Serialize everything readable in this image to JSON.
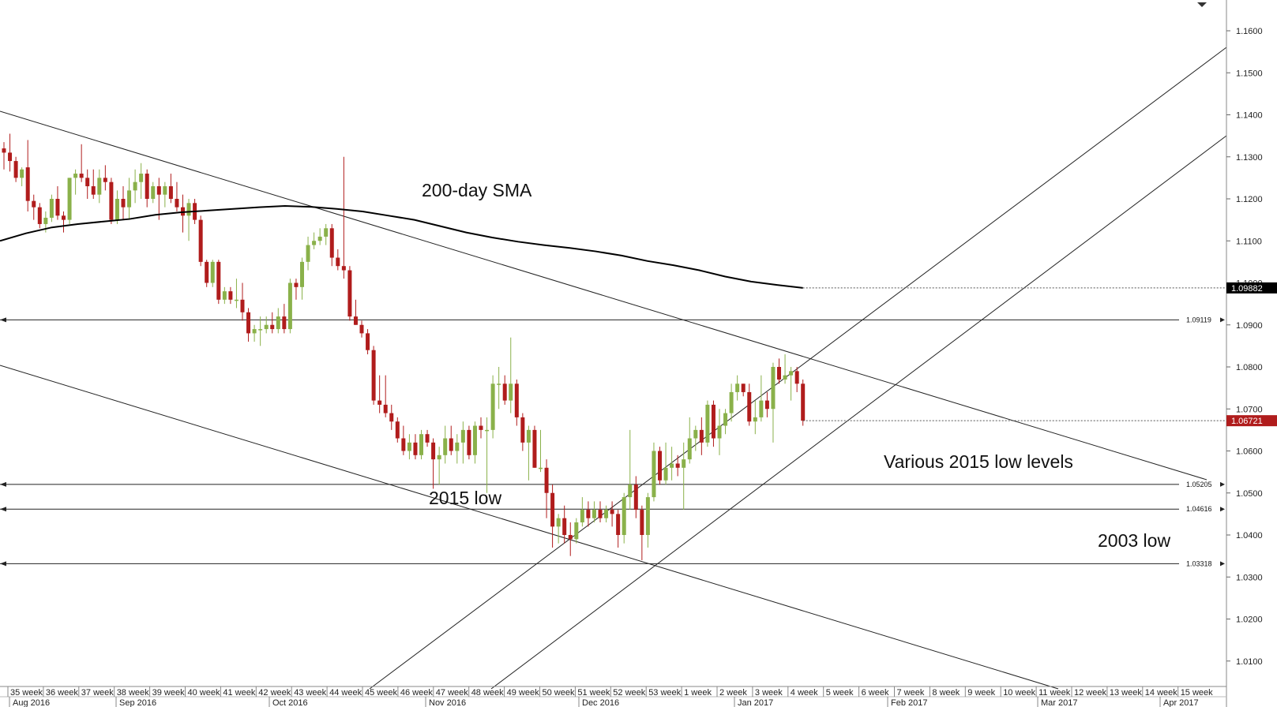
{
  "chart_data": {
    "type": "candlestick",
    "title": "",
    "ylim": [
      1.0,
      1.17
    ],
    "y_ticks": [
      "1.1600",
      "1.1500",
      "1.1400",
      "1.1300",
      "1.1200",
      "1.1100",
      "1.1000",
      "1.0900",
      "1.0800",
      "1.0700",
      "1.0600",
      "1.0500",
      "1.0400",
      "1.0300",
      "1.0200",
      "1.0100"
    ],
    "x_week_labels": [
      "35 week",
      "36 week",
      "37 week",
      "38 week",
      "39 week",
      "40 week",
      "41 week",
      "42 week",
      "43 week",
      "44 week",
      "45 week",
      "46 week",
      "47 week",
      "48 week",
      "49 week",
      "50 week",
      "51 week",
      "52 week",
      "53 week",
      "1 week",
      "2 week",
      "3 week",
      "4 week",
      "5 week",
      "6 week",
      "7 week",
      "8 week",
      "9 week",
      "10 week",
      "11 week",
      "12 week",
      "13 week",
      "14 week",
      "15 week"
    ],
    "x_month_labels": [
      "Aug 2016",
      "Sep 2016",
      "Oct 2016",
      "Nov 2016",
      "Dec 2016",
      "Jan 2017",
      "Feb 2017",
      "Mar 2017",
      "Apr 2017"
    ],
    "candles": [
      [
        1.132,
        1.1335,
        1.127,
        1.131
      ],
      [
        1.131,
        1.1355,
        1.1265,
        1.129
      ],
      [
        1.129,
        1.13,
        1.124,
        1.125
      ],
      [
        1.125,
        1.1275,
        1.123,
        1.127
      ],
      [
        1.1275,
        1.134,
        1.117,
        1.1195
      ],
      [
        1.1195,
        1.121,
        1.115,
        1.118
      ],
      [
        1.118,
        1.119,
        1.113,
        1.114
      ],
      [
        1.114,
        1.117,
        1.112,
        1.1155
      ],
      [
        1.1155,
        1.121,
        1.1145,
        1.12
      ],
      [
        1.12,
        1.123,
        1.115,
        1.116
      ],
      [
        1.116,
        1.117,
        1.112,
        1.115
      ],
      [
        1.115,
        1.125,
        1.114,
        1.125
      ],
      [
        1.125,
        1.127,
        1.121,
        1.126
      ],
      [
        1.126,
        1.133,
        1.124,
        1.125
      ],
      [
        1.125,
        1.127,
        1.12,
        1.123
      ],
      [
        1.123,
        1.127,
        1.12,
        1.121
      ],
      [
        1.121,
        1.127,
        1.119,
        1.125
      ],
      [
        1.125,
        1.128,
        1.122,
        1.124
      ],
      [
        1.124,
        1.125,
        1.114,
        1.115
      ],
      [
        1.115,
        1.122,
        1.114,
        1.12
      ],
      [
        1.12,
        1.123,
        1.115,
        1.118
      ],
      [
        1.118,
        1.125,
        1.115,
        1.122
      ],
      [
        1.122,
        1.127,
        1.119,
        1.124
      ],
      [
        1.124,
        1.1285,
        1.12,
        1.126
      ],
      [
        1.126,
        1.127,
        1.118,
        1.12
      ],
      [
        1.12,
        1.124,
        1.119,
        1.123
      ],
      [
        1.123,
        1.125,
        1.115,
        1.121
      ],
      [
        1.121,
        1.124,
        1.118,
        1.123
      ],
      [
        1.123,
        1.126,
        1.119,
        1.12
      ],
      [
        1.12,
        1.124,
        1.117,
        1.118
      ],
      [
        1.118,
        1.121,
        1.112,
        1.116
      ],
      [
        1.116,
        1.12,
        1.11,
        1.119
      ],
      [
        1.119,
        1.12,
        1.114,
        1.115
      ],
      [
        1.115,
        1.116,
        1.104,
        1.105
      ],
      [
        1.105,
        1.1055,
        1.099,
        1.1
      ],
      [
        1.1,
        1.1055,
        1.099,
        1.105
      ],
      [
        1.105,
        1.1055,
        1.095,
        1.096
      ],
      [
        1.096,
        1.099,
        1.095,
        1.098
      ],
      [
        1.098,
        1.099,
        1.095,
        1.096
      ],
      [
        1.096,
        1.101,
        1.094,
        1.096
      ],
      [
        1.096,
        1.1,
        1.091,
        1.093
      ],
      [
        1.093,
        1.094,
        1.086,
        1.088
      ],
      [
        1.088,
        1.09,
        1.086,
        1.089
      ],
      [
        1.089,
        1.092,
        1.085,
        1.089
      ],
      [
        1.089,
        1.092,
        1.088,
        1.09
      ],
      [
        1.09,
        1.093,
        1.088,
        1.089
      ],
      [
        1.089,
        1.094,
        1.088,
        1.092
      ],
      [
        1.092,
        1.095,
        1.088,
        1.089
      ],
      [
        1.089,
        1.101,
        1.088,
        1.1
      ],
      [
        1.1,
        1.101,
        1.096,
        1.099
      ],
      [
        1.099,
        1.106,
        1.096,
        1.105
      ],
      [
        1.105,
        1.111,
        1.103,
        1.109
      ],
      [
        1.109,
        1.112,
        1.108,
        1.11
      ],
      [
        1.11,
        1.113,
        1.109,
        1.111
      ],
      [
        1.111,
        1.114,
        1.109,
        1.113
      ],
      [
        1.113,
        1.114,
        1.104,
        1.106
      ],
      [
        1.106,
        1.108,
        1.103,
        1.104
      ],
      [
        1.104,
        1.13,
        1.101,
        1.103
      ],
      [
        1.103,
        1.104,
        1.091,
        1.092
      ],
      [
        1.092,
        1.096,
        1.09,
        1.09
      ],
      [
        1.09,
        1.091,
        1.087,
        1.088
      ],
      [
        1.088,
        1.089,
        1.083,
        1.084
      ],
      [
        1.084,
        1.085,
        1.071,
        1.072
      ],
      [
        1.072,
        1.078,
        1.069,
        1.071
      ],
      [
        1.071,
        1.078,
        1.068,
        1.069
      ],
      [
        1.069,
        1.071,
        1.065,
        1.067
      ],
      [
        1.067,
        1.068,
        1.062,
        1.063
      ],
      [
        1.063,
        1.066,
        1.059,
        1.06
      ],
      [
        1.06,
        1.064,
        1.058,
        1.062
      ],
      [
        1.062,
        1.064,
        1.058,
        1.059
      ],
      [
        1.059,
        1.065,
        1.058,
        1.064
      ],
      [
        1.064,
        1.065,
        1.061,
        1.062
      ],
      [
        1.062,
        1.063,
        1.051,
        1.058
      ],
      [
        1.058,
        1.061,
        1.052,
        1.059
      ],
      [
        1.059,
        1.066,
        1.057,
        1.063
      ],
      [
        1.063,
        1.066,
        1.059,
        1.06
      ],
      [
        1.06,
        1.064,
        1.057,
        1.062
      ],
      [
        1.062,
        1.067,
        1.057,
        1.065
      ],
      [
        1.065,
        1.066,
        1.058,
        1.059
      ],
      [
        1.059,
        1.067,
        1.057,
        1.066
      ],
      [
        1.066,
        1.068,
        1.063,
        1.065
      ],
      [
        1.065,
        1.068,
        1.05,
        1.065
      ],
      [
        1.065,
        1.078,
        1.063,
        1.076
      ],
      [
        1.076,
        1.08,
        1.07,
        1.076
      ],
      [
        1.076,
        1.078,
        1.071,
        1.072
      ],
      [
        1.072,
        1.087,
        1.069,
        1.076
      ],
      [
        1.076,
        1.077,
        1.066,
        1.068
      ],
      [
        1.068,
        1.069,
        1.06,
        1.062
      ],
      [
        1.062,
        1.066,
        1.053,
        1.065
      ],
      [
        1.065,
        1.066,
        1.056,
        1.056
      ],
      [
        1.056,
        1.065,
        1.055,
        1.056
      ],
      [
        1.056,
        1.058,
        1.044,
        1.05
      ],
      [
        1.05,
        1.052,
        1.037,
        1.042
      ],
      [
        1.042,
        1.045,
        1.038,
        1.044
      ],
      [
        1.044,
        1.047,
        1.038,
        1.04
      ],
      [
        1.04,
        1.043,
        1.035,
        1.039
      ],
      [
        1.039,
        1.044,
        1.038,
        1.043
      ],
      [
        1.043,
        1.049,
        1.042,
        1.046
      ],
      [
        1.046,
        1.048,
        1.042,
        1.044
      ],
      [
        1.044,
        1.048,
        1.043,
        1.046
      ],
      [
        1.046,
        1.048,
        1.043,
        1.044
      ],
      [
        1.044,
        1.047,
        1.043,
        1.046
      ],
      [
        1.046,
        1.048,
        1.042,
        1.045
      ],
      [
        1.045,
        1.046,
        1.037,
        1.04
      ],
      [
        1.04,
        1.05,
        1.038,
        1.049
      ],
      [
        1.049,
        1.065,
        1.046,
        1.052
      ],
      [
        1.052,
        1.054,
        1.044,
        1.046
      ],
      [
        1.046,
        1.047,
        1.034,
        1.04
      ],
      [
        1.04,
        1.05,
        1.037,
        1.049
      ],
      [
        1.049,
        1.062,
        1.048,
        1.06
      ],
      [
        1.06,
        1.061,
        1.052,
        1.053
      ],
      [
        1.053,
        1.062,
        1.052,
        1.056
      ],
      [
        1.056,
        1.061,
        1.053,
        1.057
      ],
      [
        1.057,
        1.059,
        1.054,
        1.056
      ],
      [
        1.056,
        1.062,
        1.046,
        1.058
      ],
      [
        1.058,
        1.068,
        1.057,
        1.063
      ],
      [
        1.063,
        1.066,
        1.06,
        1.065
      ],
      [
        1.065,
        1.068,
        1.059,
        1.062
      ],
      [
        1.062,
        1.072,
        1.061,
        1.071
      ],
      [
        1.071,
        1.072,
        1.061,
        1.063
      ],
      [
        1.063,
        1.07,
        1.059,
        1.066
      ],
      [
        1.066,
        1.07,
        1.064,
        1.069
      ],
      [
        1.069,
        1.076,
        1.067,
        1.074
      ],
      [
        1.074,
        1.078,
        1.072,
        1.076
      ],
      [
        1.076,
        1.076,
        1.073,
        1.074
      ],
      [
        1.074,
        1.076,
        1.066,
        1.067
      ],
      [
        1.067,
        1.072,
        1.064,
        1.068
      ],
      [
        1.068,
        1.078,
        1.067,
        1.072
      ],
      [
        1.072,
        1.074,
        1.068,
        1.07
      ],
      [
        1.07,
        1.081,
        1.062,
        1.08
      ],
      [
        1.08,
        1.082,
        1.076,
        1.077
      ],
      [
        1.077,
        1.083,
        1.076,
        1.078
      ],
      [
        1.078,
        1.08,
        1.072,
        1.079
      ],
      [
        1.079,
        1.08,
        1.074,
        1.076
      ],
      [
        1.076,
        1.077,
        1.066,
        1.0672
      ]
    ],
    "sma_200": {
      "name": "200-day SMA",
      "values": [
        1.11,
        1.1118,
        1.1132,
        1.114,
        1.1146,
        1.1152,
        1.1162,
        1.1168,
        1.1172,
        1.1176,
        1.118,
        1.1183,
        1.1181,
        1.1176,
        1.117,
        1.116,
        1.115,
        1.1135,
        1.112,
        1.1108,
        1.1098,
        1.109,
        1.1083,
        1.1075,
        1.1065,
        1.1052,
        1.1042,
        1.103,
        1.1015,
        1.1003,
        1.0995,
        1.0988
      ],
      "last": "1.09882"
    },
    "horizontal_levels": [
      {
        "value": 1.09119,
        "label": "1.09119"
      },
      {
        "value": 1.05205,
        "label": "1.05205"
      },
      {
        "value": 1.04616,
        "label": "1.04616"
      },
      {
        "value": 1.03318,
        "label": "1.03318"
      }
    ],
    "current_price": "1.06721",
    "annotations": [
      "200-day SMA",
      "Various 2015 low levels",
      "2015 low",
      "2003 low"
    ],
    "colors": {
      "bull": "#8ab14a",
      "bear": "#b01c1c",
      "sma": "#000000",
      "sma_tag_bg": "#000000",
      "price_tag_bg": "#b01c1c",
      "grid": "#e4e4e4",
      "line": "#222222"
    }
  }
}
